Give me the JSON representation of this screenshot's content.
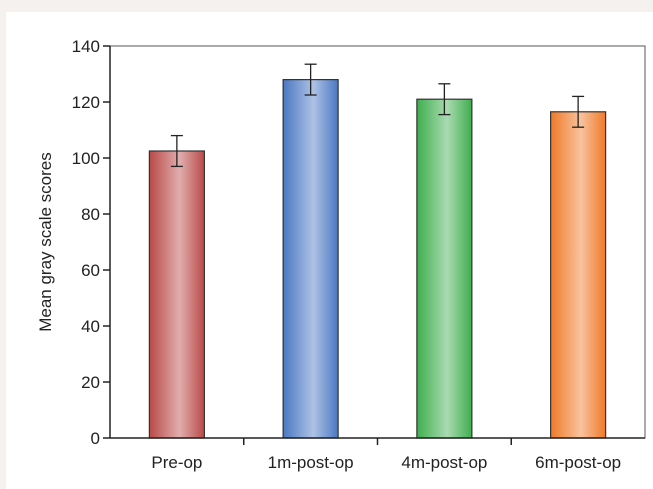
{
  "chart_data": {
    "type": "bar",
    "title": "",
    "xlabel": "",
    "ylabel": "Mean gray scale scores",
    "ylim": [
      0,
      140
    ],
    "yticks": [
      0,
      20,
      40,
      60,
      80,
      100,
      120,
      140
    ],
    "grid": false,
    "categories": [
      "Pre-op",
      "1m-post-op",
      "4m-post-op",
      "6m-post-op"
    ],
    "values": [
      102.5,
      128,
      121,
      116.5
    ],
    "error": [
      5.5,
      5.5,
      5.5,
      5.5
    ],
    "colors": [
      "#b94a48",
      "#4a78c2",
      "#3fae4f",
      "#ef7a28"
    ]
  }
}
